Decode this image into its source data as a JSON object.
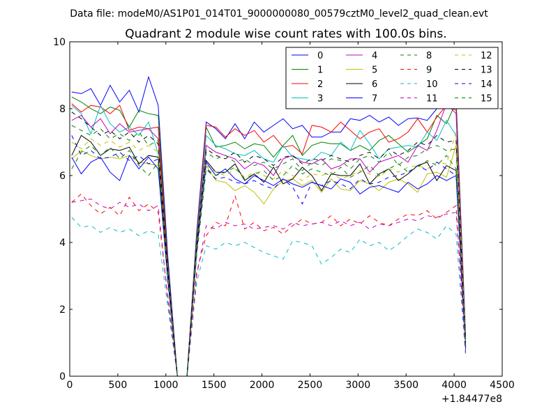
{
  "suptitle": "Data file: modeM0/AS1P01_014T01_9000000080_00579cztM0_level2_quad_clean.evt",
  "chart_data": {
    "type": "line",
    "title": "Quadrant 2 module wise count rates with 100.0s bins.",
    "xlabel": "",
    "ylabel": "",
    "x_offset_label": "+1.84477e8",
    "xlim": [
      0,
      4500
    ],
    "ylim": [
      0,
      10
    ],
    "x_ticks": [
      "0",
      "500",
      "1000",
      "1500",
      "2000",
      "2500",
      "3000",
      "3500",
      "4000",
      "4500"
    ],
    "y_ticks": [
      "0",
      "2",
      "4",
      "6",
      "8",
      "10"
    ],
    "legend_position": "top-right",
    "legend_columns": 4,
    "x": [
      20,
      120,
      220,
      320,
      420,
      520,
      620,
      720,
      820,
      920,
      1020,
      1120,
      1220,
      1320,
      1420,
      1520,
      1620,
      1720,
      1820,
      1920,
      2020,
      2120,
      2220,
      2320,
      2420,
      2520,
      2620,
      2720,
      2820,
      2920,
      3020,
      3120,
      3220,
      3320,
      3420,
      3520,
      3620,
      3720,
      3820,
      3920,
      4020,
      4120
    ],
    "series": [
      {
        "name": "0",
        "color": "#0000ff",
        "dash": "solid",
        "values": [
          8.5,
          8.45,
          8.6,
          8.1,
          8.7,
          8.2,
          8.55,
          7.9,
          8.95,
          8.1,
          3.6,
          0.0,
          0.0,
          4.3,
          7.6,
          7.4,
          7.1,
          7.55,
          7.1,
          7.6,
          7.3,
          7.5,
          7.7,
          7.4,
          7.5,
          7.15,
          7.15,
          7.3,
          7.3,
          7.7,
          7.65,
          7.8,
          7.6,
          7.75,
          7.5,
          7.7,
          7.72,
          7.65,
          8.0,
          9.05,
          8.3,
          1.2
        ]
      },
      {
        "name": "1",
        "color": "#008000",
        "dash": "solid",
        "values": [
          8.35,
          8.2,
          8.0,
          7.85,
          8.05,
          7.95,
          7.45,
          7.95,
          7.85,
          7.8,
          3.4,
          0.0,
          0.0,
          4.2,
          7.45,
          6.85,
          6.9,
          7.0,
          6.8,
          6.95,
          6.9,
          6.55,
          6.9,
          7.2,
          6.6,
          6.9,
          7.0,
          6.95,
          6.95,
          6.75,
          6.9,
          6.75,
          7.05,
          7.2,
          6.95,
          6.7,
          6.9,
          7.1,
          7.8,
          7.55,
          8.2,
          1.1
        ]
      },
      {
        "name": "2",
        "color": "#ff0000",
        "dash": "solid",
        "values": [
          8.15,
          7.9,
          8.1,
          8.05,
          7.85,
          8.1,
          7.35,
          7.45,
          7.4,
          7.45,
          3.3,
          0.0,
          0.0,
          4.1,
          7.5,
          7.45,
          7.15,
          7.4,
          7.2,
          7.35,
          7.0,
          7.2,
          6.85,
          6.9,
          6.65,
          7.5,
          7.45,
          7.3,
          7.6,
          7.35,
          7.1,
          7.3,
          7.4,
          7.0,
          7.1,
          7.3,
          7.7,
          7.3,
          7.75,
          8.1,
          7.95,
          1.0
        ]
      },
      {
        "name": "3",
        "color": "#00bfbf",
        "dash": "solid",
        "values": [
          8.1,
          7.85,
          7.25,
          8.1,
          7.55,
          7.3,
          7.45,
          7.2,
          7.6,
          6.65,
          3.2,
          0.0,
          0.0,
          4.0,
          7.2,
          6.9,
          6.8,
          6.65,
          6.6,
          6.75,
          6.5,
          6.4,
          6.9,
          6.55,
          6.5,
          6.45,
          6.7,
          6.6,
          7.0,
          6.75,
          7.35,
          6.95,
          6.5,
          6.8,
          6.85,
          6.9,
          6.85,
          7.3,
          7.05,
          7.65,
          7.2,
          1.0
        ]
      },
      {
        "name": "4",
        "color": "#bf00bf",
        "dash": "solid",
        "values": [
          7.65,
          7.8,
          7.45,
          7.7,
          7.25,
          7.55,
          7.3,
          7.35,
          7.4,
          7.1,
          3.1,
          0.0,
          0.0,
          3.9,
          6.9,
          6.7,
          6.6,
          6.5,
          6.2,
          6.4,
          6.3,
          6.0,
          6.5,
          6.6,
          6.4,
          6.35,
          6.5,
          6.2,
          6.3,
          6.5,
          6.5,
          6.1,
          6.4,
          6.5,
          6.6,
          6.4,
          6.9,
          6.75,
          7.35,
          8.15,
          7.85,
          0.9
        ]
      },
      {
        "name": "5",
        "color": "#bfbf00",
        "dash": "solid",
        "values": [
          6.5,
          6.75,
          6.6,
          6.5,
          6.55,
          6.5,
          6.6,
          6.4,
          6.35,
          6.3,
          2.9,
          0.0,
          0.0,
          3.7,
          6.3,
          5.85,
          5.8,
          5.55,
          5.7,
          5.5,
          5.15,
          5.6,
          5.85,
          5.9,
          5.7,
          5.85,
          5.5,
          5.9,
          5.6,
          5.55,
          5.85,
          5.75,
          5.55,
          5.8,
          5.9,
          5.75,
          5.5,
          6.05,
          6.1,
          5.95,
          6.9,
          0.8
        ]
      },
      {
        "name": "6",
        "color": "#000000",
        "dash": "solid",
        "values": [
          6.6,
          7.2,
          7.0,
          6.6,
          6.8,
          6.75,
          6.85,
          6.35,
          6.6,
          6.55,
          3.0,
          0.0,
          0.0,
          3.8,
          6.45,
          6.1,
          6.1,
          6.35,
          5.85,
          6.05,
          5.8,
          6.25,
          5.75,
          5.9,
          6.25,
          6.0,
          5.55,
          6.05,
          6.0,
          6.0,
          6.35,
          5.75,
          6.05,
          6.2,
          5.85,
          6.05,
          6.3,
          6.4,
          5.85,
          6.3,
          6.15,
          0.9
        ]
      },
      {
        "name": "7",
        "color": "#0000ff",
        "dash": "solid",
        "values": [
          6.55,
          6.05,
          6.4,
          6.55,
          6.1,
          5.85,
          6.6,
          6.2,
          6.55,
          6.2,
          2.9,
          0.0,
          0.0,
          3.7,
          6.4,
          6.0,
          6.2,
          5.9,
          5.75,
          6.0,
          5.85,
          5.7,
          5.9,
          5.75,
          5.65,
          5.8,
          5.7,
          5.6,
          5.9,
          5.8,
          5.45,
          5.65,
          5.7,
          5.6,
          5.5,
          5.8,
          5.6,
          5.75,
          6.0,
          5.85,
          6.0,
          0.8
        ]
      },
      {
        "name": "8",
        "color": "#008000",
        "dash": "dashed",
        "values": [
          7.5,
          7.35,
          7.2,
          7.4,
          7.1,
          7.25,
          7.05,
          7.3,
          6.9,
          7.05,
          3.1,
          0.0,
          0.0,
          3.8,
          6.7,
          6.5,
          6.6,
          6.4,
          6.5,
          6.3,
          6.4,
          6.2,
          6.35,
          6.5,
          6.15,
          6.4,
          6.3,
          6.5,
          6.45,
          6.2,
          6.5,
          6.6,
          6.4,
          6.7,
          6.3,
          6.55,
          6.6,
          6.8,
          6.9,
          6.75,
          6.8,
          0.9
        ]
      },
      {
        "name": "9",
        "color": "#ff0000",
        "dash": "dashed",
        "values": [
          5.2,
          5.45,
          5.1,
          4.85,
          5.05,
          4.8,
          5.35,
          4.95,
          5.15,
          4.9,
          2.4,
          0.0,
          0.0,
          3.1,
          4.2,
          4.6,
          4.5,
          5.4,
          4.4,
          4.6,
          4.35,
          4.45,
          4.25,
          4.5,
          4.7,
          4.55,
          4.6,
          4.8,
          4.5,
          4.7,
          4.55,
          4.8,
          4.6,
          4.5,
          4.7,
          4.85,
          4.8,
          4.95,
          4.7,
          4.9,
          5.1,
          0.8
        ]
      },
      {
        "name": "10",
        "color": "#00bfbf",
        "dash": "dashed",
        "values": [
          4.75,
          4.45,
          4.5,
          4.3,
          4.45,
          4.3,
          4.4,
          4.2,
          4.35,
          4.25,
          2.1,
          0.0,
          0.0,
          2.8,
          3.9,
          3.8,
          4.0,
          3.9,
          4.0,
          3.85,
          3.7,
          3.6,
          3.5,
          4.05,
          4.0,
          3.9,
          3.35,
          3.55,
          3.8,
          3.7,
          4.1,
          3.9,
          4.0,
          3.75,
          3.95,
          4.2,
          4.4,
          4.3,
          4.1,
          4.5,
          4.25,
          0.6
        ]
      },
      {
        "name": "11",
        "color": "#bf00bf",
        "dash": "dashed",
        "values": [
          5.2,
          5.25,
          5.3,
          5.1,
          5.0,
          5.2,
          5.05,
          5.15,
          4.95,
          5.1,
          2.3,
          0.0,
          0.0,
          3.0,
          4.5,
          4.4,
          4.6,
          4.5,
          4.55,
          4.4,
          4.45,
          4.5,
          4.4,
          4.6,
          4.5,
          4.55,
          4.6,
          4.5,
          4.65,
          4.5,
          4.6,
          4.4,
          4.55,
          4.5,
          4.6,
          4.7,
          4.65,
          4.8,
          4.75,
          4.85,
          4.9,
          0.7
        ]
      },
      {
        "name": "12",
        "color": "#bfbf00",
        "dash": "dashed",
        "values": [
          7.0,
          6.8,
          7.1,
          6.9,
          7.05,
          6.85,
          7.0,
          6.75,
          6.9,
          6.7,
          3.0,
          0.0,
          0.0,
          3.7,
          6.3,
          6.1,
          6.0,
          6.2,
          5.95,
          6.1,
          6.0,
          5.9,
          6.15,
          6.0,
          5.85,
          6.05,
          6.0,
          6.1,
          5.9,
          6.0,
          6.15,
          6.05,
          5.95,
          6.2,
          6.1,
          6.25,
          6.3,
          6.2,
          6.4,
          6.35,
          7.3,
          0.9
        ]
      },
      {
        "name": "13",
        "color": "#000000",
        "dash": "dashed",
        "values": [
          7.9,
          7.7,
          7.45,
          7.2,
          7.35,
          7.1,
          7.3,
          7.0,
          7.2,
          6.95,
          3.2,
          0.0,
          0.0,
          3.9,
          6.8,
          6.6,
          6.5,
          6.7,
          6.4,
          6.6,
          6.5,
          6.3,
          6.55,
          6.6,
          6.35,
          6.5,
          6.45,
          6.6,
          6.5,
          6.4,
          6.6,
          6.7,
          6.5,
          6.8,
          6.6,
          6.75,
          7.0,
          6.9,
          7.2,
          7.0,
          7.05,
          0.9
        ]
      },
      {
        "name": "14",
        "color": "#0000ff",
        "dash": "dashed",
        "values": [
          7.2,
          6.6,
          6.75,
          6.5,
          6.55,
          6.7,
          6.45,
          6.6,
          6.35,
          6.5,
          2.9,
          0.0,
          0.0,
          3.6,
          6.2,
          5.9,
          5.95,
          5.8,
          5.75,
          5.85,
          5.7,
          5.6,
          5.9,
          5.65,
          5.15,
          5.8,
          5.7,
          5.85,
          5.75,
          5.6,
          5.9,
          5.75,
          5.8,
          5.95,
          6.0,
          6.1,
          6.3,
          6.15,
          6.4,
          6.2,
          6.0,
          0.8
        ]
      },
      {
        "name": "15",
        "color": "#008000",
        "dash": "dashed",
        "values": [
          6.2,
          6.7,
          6.9,
          6.6,
          6.85,
          6.5,
          6.75,
          6.3,
          6.0,
          6.4,
          2.8,
          0.0,
          0.0,
          3.6,
          6.2,
          6.0,
          6.1,
          6.25,
          5.9,
          6.05,
          6.15,
          5.85,
          6.0,
          6.3,
          6.05,
          6.2,
          6.1,
          6.0,
          6.25,
          5.95,
          6.1,
          6.3,
          6.0,
          6.2,
          6.35,
          6.1,
          6.25,
          6.45,
          6.3,
          6.6,
          6.2,
          0.9
        ]
      }
    ]
  }
}
